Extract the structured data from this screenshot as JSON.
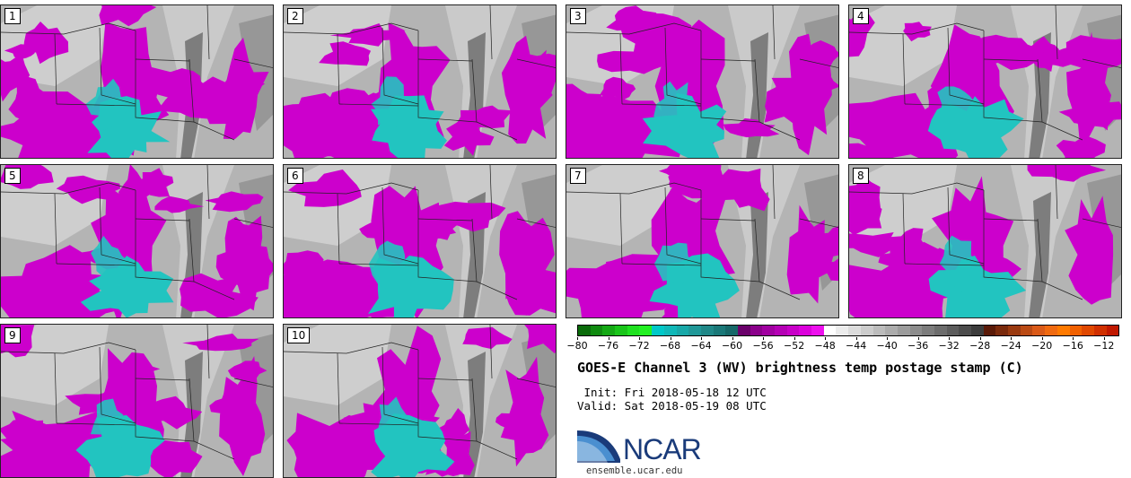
{
  "panels": [
    {
      "label": "1"
    },
    {
      "label": "2"
    },
    {
      "label": "3"
    },
    {
      "label": "4"
    },
    {
      "label": "5"
    },
    {
      "label": "6"
    },
    {
      "label": "7"
    },
    {
      "label": "8"
    },
    {
      "label": "9"
    },
    {
      "label": "10"
    }
  ],
  "colorbar": {
    "ticks": [
      "−80",
      "−76",
      "−72",
      "−68",
      "−64",
      "−60",
      "−56",
      "−52",
      "−48",
      "−44",
      "−40",
      "−36",
      "−32",
      "−28",
      "−24",
      "−20",
      "−16",
      "−12"
    ],
    "tick_values": [
      -80,
      -76,
      -72,
      -68,
      -64,
      -60,
      -56,
      -52,
      -48,
      -44,
      -40,
      -36,
      -32,
      -28,
      -24,
      -20,
      -16,
      -12
    ],
    "range": [
      -80,
      -10
    ],
    "colors": [
      "#0a6b0a",
      "#0f8a0f",
      "#14a814",
      "#19c419",
      "#1fe01f",
      "#22f022",
      "#00c8c8",
      "#10b8b8",
      "#18a8a8",
      "#209898",
      "#208888",
      "#1a7878",
      "#166868",
      "#6a006a",
      "#8a008a",
      "#a000a0",
      "#b400b4",
      "#c800c8",
      "#dc00dc",
      "#ee10ee",
      "#ffffff",
      "#ececec",
      "#dcdcdc",
      "#cccccc",
      "#bcbcbc",
      "#acacac",
      "#9c9c9c",
      "#8c8c8c",
      "#7c7c7c",
      "#6c6c6c",
      "#5c5c5c",
      "#4c4c4c",
      "#3c3c3c",
      "#5a1a08",
      "#7a2a0c",
      "#9a3a10",
      "#ba4a14",
      "#da5a18",
      "#f06a10",
      "#ff7a00",
      "#f06000",
      "#e04800",
      "#d03000",
      "#c01800"
    ]
  },
  "title": "GOES-E Channel 3 (WV) brightness temp postage stamp (C)",
  "init_line": " Init: Fri 2018-05-18 12 UTC",
  "valid_line": "Valid: Sat 2018-05-19 08 UTC",
  "logo_text": "NCAR",
  "site": "ensemble.ucar.edu",
  "colors": {
    "magenta": "#cc00cc",
    "cyan": "#22c4c0",
    "light_gray": "#d0d0d0",
    "dark_gray": "#707070",
    "ncar_blue": "#1a3b7a"
  }
}
